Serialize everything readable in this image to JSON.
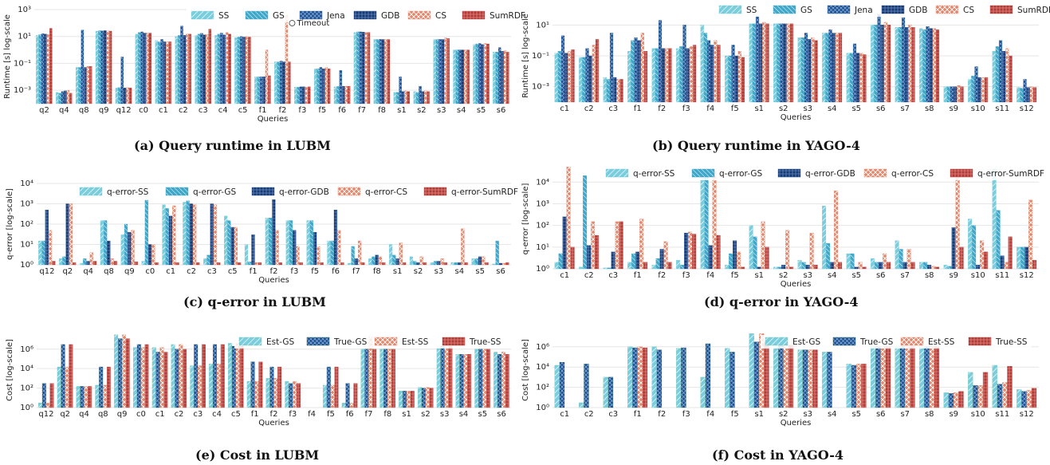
{
  "chart_data": [
    {
      "id": "a",
      "type": "bar",
      "log": true,
      "ylim_exp": [
        -4,
        3
      ],
      "ylabel": "Runtime [s] log-scale",
      "xlabel": "Queries",
      "caption": "(a) Query runtime in LUBM",
      "annotation": "Timeout",
      "categories": [
        "q2",
        "q4",
        "q8",
        "q9",
        "q12",
        "c0",
        "c1",
        "c2",
        "c3",
        "c4",
        "c5",
        "f1",
        "f2",
        "f3",
        "f5",
        "f6",
        "f7",
        "f8",
        "s1",
        "s2",
        "s3",
        "s4",
        "s5",
        "s6"
      ],
      "series": [
        {
          "name": "SS",
          "color": "#79cddc",
          "pattern": "p-ss",
          "values": [
            12,
            0.0007,
            0.05,
            25,
            0.0015,
            15,
            5,
            10,
            12,
            12,
            8,
            0.01,
            0.13,
            0.0017,
            0.04,
            0.0018,
            20,
            6,
            0.0007,
            0.0008,
            6,
            1,
            2.5,
            0.7
          ]
        },
        {
          "name": "GS",
          "color": "#3fa7c9",
          "pattern": "p-gs",
          "values": [
            14,
            0.0006,
            0.05,
            27,
            0.0016,
            20,
            4,
            12,
            15,
            15,
            9,
            0.01,
            0.13,
            0.0017,
            0.04,
            0.0019,
            22,
            6,
            0.0007,
            0.0007,
            6,
            1,
            2.8,
            0.7
          ]
        },
        {
          "name": "Jena",
          "color": "#1b4f8f",
          "pattern": "p-jena",
          "values": [
            16,
            0.0008,
            30,
            26,
            0.3,
            22,
            6,
            60,
            17,
            18,
            10,
            0.01,
            0.15,
            0.0018,
            0.05,
            0.03,
            22,
            6,
            0.01,
            0.002,
            6,
            1,
            3,
            1.5
          ]
        },
        {
          "name": "GDB",
          "color": "#173a74",
          "pattern": "p-gdb",
          "values": [
            15,
            0.0009,
            0.05,
            27,
            0.0015,
            18,
            4,
            12,
            13,
            13,
            9,
            0.01,
            0.13,
            0.0018,
            0.04,
            0.002,
            21,
            6,
            0.0008,
            0.0008,
            6,
            1,
            2.5,
            0.8
          ]
        },
        {
          "name": "CS",
          "color": "#e3876c",
          "pattern": "p-cs",
          "values": [
            14,
            0.001,
            0.06,
            26,
            0.0016,
            18,
            4,
            15,
            14,
            20,
            10,
            1,
            400,
            0.0017,
            0.05,
            0.002,
            20,
            6,
            0.0009,
            0.0009,
            8,
            1,
            3,
            0.9
          ]
        },
        {
          "name": "SumRDF",
          "color": "#b33a36",
          "pattern": "p-sumrdf",
          "values": [
            40,
            0.0006,
            0.06,
            25,
            0.0015,
            18,
            4,
            15,
            35,
            15,
            9,
            0.012,
            0.13,
            0.0018,
            0.04,
            0.002,
            20,
            6,
            0.0008,
            0.0008,
            7,
            1,
            2.8,
            0.7
          ]
        }
      ]
    },
    {
      "id": "b",
      "type": "bar",
      "log": true,
      "ylim_exp": [
        -4,
        2
      ],
      "ylabel": "Runtime [s] log-scale",
      "xlabel": "Queries",
      "caption": "(b) Query runtime in YAGO-4",
      "categories": [
        "c1",
        "c2",
        "c3",
        "f1",
        "f2",
        "f3",
        "f4",
        "f5",
        "s1",
        "s2",
        "s3",
        "s4",
        "s5",
        "s6",
        "s7",
        "s8",
        "s9",
        "s10",
        "s11",
        "s12"
      ],
      "series": [
        {
          "name": "SS",
          "color": "#79cddc",
          "pattern": "p-ss",
          "values": [
            0.15,
            0.08,
            0.004,
            0.2,
            0.3,
            0.3,
            10,
            0.1,
            12,
            12,
            1.5,
            3,
            0.15,
            10,
            7,
            6,
            0.001,
            0.003,
            0.2,
            0.0009
          ]
        },
        {
          "name": "GS",
          "color": "#3fa7c9",
          "pattern": "p-gs",
          "values": [
            0.2,
            0.08,
            0.003,
            1,
            0.3,
            0.4,
            3,
            0.1,
            12,
            12,
            1.5,
            3,
            0.15,
            10,
            7,
            5,
            0.001,
            0.005,
            0.4,
            0.0008
          ]
        },
        {
          "name": "Jena",
          "color": "#1b4f8f",
          "pattern": "p-jena",
          "values": [
            2,
            0.3,
            3,
            1.5,
            20,
            10,
            1,
            0.5,
            40,
            12,
            3,
            5,
            0.6,
            50,
            30,
            8,
            0.001,
            0.02,
            1,
            0.003
          ]
        },
        {
          "name": "GDB",
          "color": "#173a74",
          "pattern": "p-gdb",
          "values": [
            0.15,
            0.1,
            0.004,
            1,
            0.3,
            0.3,
            0.5,
            0.1,
            12,
            12,
            1.2,
            3,
            0.15,
            10,
            7,
            6,
            0.001,
            0.004,
            0.2,
            0.0009
          ]
        },
        {
          "name": "CS",
          "color": "#e3876c",
          "pattern": "p-cs",
          "values": [
            0.2,
            0.5,
            0.003,
            3,
            0.3,
            0.4,
            1,
            0.2,
            15,
            12,
            1.5,
            3,
            0.15,
            15,
            10,
            6,
            0.0012,
            0.004,
            0.3,
            0.001
          ]
        },
        {
          "name": "SumRDF",
          "color": "#b33a36",
          "pattern": "p-sumrdf",
          "values": [
            0.25,
            1.2,
            0.003,
            0.2,
            0.3,
            0.5,
            0.5,
            0.08,
            12,
            12,
            1,
            3,
            0.12,
            10,
            7,
            5,
            0.001,
            0.004,
            0.1,
            0.0009
          ]
        }
      ]
    },
    {
      "id": "c",
      "type": "bar",
      "log": true,
      "ylim_exp": [
        0,
        4
      ],
      "ylabel": "q-error [log-scale]",
      "xlabel": "Queries",
      "caption": "(c) q-error in LUBM",
      "categories": [
        "q12",
        "q2",
        "q4",
        "q8",
        "q9",
        "c0",
        "c1",
        "c2",
        "c3",
        "c5",
        "f1",
        "f2",
        "f3",
        "f5",
        "f6",
        "f7",
        "f8",
        "s1",
        "s2",
        "s3",
        "s4",
        "s5",
        "s6"
      ],
      "series": [
        {
          "name": "q-error-SS",
          "color": "#79cddc",
          "pattern": "p-ss",
          "values": [
            15,
            2,
            1.2,
            150,
            30,
            1.5,
            900,
            1200,
            2,
            250,
            10,
            200,
            150,
            150,
            15,
            1.2,
            2,
            10,
            2.5,
            1.3,
            1.3,
            2,
            1.1
          ]
        },
        {
          "name": "q-error-GS",
          "color": "#3fa7c9",
          "pattern": "p-gs",
          "values": [
            15,
            2.5,
            2,
            150,
            100,
            1500,
            600,
            1400,
            3,
            150,
            1.4,
            200,
            150,
            150,
            15,
            8,
            2.5,
            3,
            1.5,
            1.5,
            1.3,
            2,
            15
          ]
        },
        {
          "name": "q-error-GDB",
          "color": "#1b4f8f",
          "pattern": "p-gdb",
          "values": [
            500,
            1000,
            1.5,
            15,
            40,
            10,
            250,
            1000,
            1000,
            70,
            30,
            1600,
            50,
            40,
            500,
            2,
            3,
            2,
            1.3,
            1.5,
            1.3,
            2.5,
            1.2
          ]
        },
        {
          "name": "q-error-CS",
          "color": "#e3876c",
          "pattern": "p-cs",
          "values": [
            50,
            1000,
            4,
            2,
            50,
            10,
            800,
            900,
            900,
            70,
            1.3,
            50,
            8,
            8,
            50,
            15,
            2.5,
            12,
            2.5,
            2,
            60,
            2.5,
            1.2
          ]
        },
        {
          "name": "q-error-SumRDF",
          "color": "#b33a36",
          "pattern": "p-sumrdf",
          "values": [
            1.5,
            1.3,
            1.5,
            1.5,
            1.4,
            1.3,
            1.3,
            1.3,
            1.3,
            1.3,
            1.3,
            1.3,
            1.3,
            1.3,
            1.3,
            1.3,
            1.3,
            1.3,
            1.3,
            1.3,
            1.3,
            1.3,
            1.3
          ]
        }
      ]
    },
    {
      "id": "d",
      "type": "bar",
      "log": true,
      "ylim_exp": [
        0,
        4.6
      ],
      "ylabel": "q-error [log-scale]",
      "xlabel": "Queries",
      "caption": "(d) q-error in YAGO-4",
      "categories": [
        "c1",
        "c2",
        "c3",
        "f1",
        "f2",
        "f3",
        "f4",
        "f5",
        "s1",
        "s2",
        "s3",
        "s4",
        "s5",
        "s6",
        "s7",
        "s8",
        "s9",
        "s10",
        "s11",
        "s12"
      ],
      "series": [
        {
          "name": "q-error-SS",
          "color": "#79cddc",
          "pattern": "p-ss",
          "values": [
            2,
            1.2,
            1.1,
            2,
            1.5,
            2.5,
            40000,
            1.5,
            100,
            1.2,
            2.5,
            800,
            5,
            3,
            20,
            2,
            1.5,
            200,
            40000,
            10
          ]
        },
        {
          "name": "q-error-GS",
          "color": "#3fa7c9",
          "pattern": "p-gs",
          "values": [
            5,
            20000,
            1.1,
            5,
            3,
            1.5,
            40000,
            5,
            30,
            1.2,
            2,
            15,
            5,
            2,
            8,
            2,
            1.3,
            100,
            500,
            10
          ]
        },
        {
          "name": "q-error-GDB",
          "color": "#1b4f8f",
          "pattern": "p-gdb",
          "values": [
            250,
            12,
            6,
            6,
            8,
            45,
            12,
            20,
            1.2,
            1.5,
            1.5,
            2,
            1.2,
            2,
            2,
            1.5,
            80,
            1.5,
            4,
            10
          ]
        },
        {
          "name": "q-error-CS",
          "color": "#e3876c",
          "pattern": "p-cs",
          "values": [
            50000,
            150,
            150,
            200,
            18,
            50,
            40000,
            6,
            150,
            60,
            45,
            4000,
            2,
            5,
            8,
            1.3,
            40000,
            20,
            2,
            1500
          ]
        },
        {
          "name": "q-error-SumRDF",
          "color": "#b33a36",
          "pattern": "p-sumrdf",
          "values": [
            10,
            35,
            150,
            2,
            2,
            40,
            35,
            1.2,
            10,
            1.2,
            1.5,
            2,
            1.2,
            2,
            2,
            1.2,
            10,
            6,
            30,
            2.5
          ]
        }
      ]
    },
    {
      "id": "e",
      "type": "bar",
      "log": true,
      "ylim_exp": [
        0,
        7.7
      ],
      "ylabel": "Cost [log-scale]",
      "xlabel": "Queries",
      "caption": "(e) Cost in LUBM",
      "categories": [
        "q12",
        "q2",
        "q4",
        "q8",
        "q9",
        "c0",
        "c1",
        "c2",
        "c3",
        "c4",
        "c5",
        "f1",
        "f2",
        "f3",
        "f4",
        "f5",
        "f6",
        "f7",
        "f8",
        "s1",
        "s2",
        "s3",
        "s4",
        "s5",
        "s6"
      ],
      "series": [
        {
          "name": "Est-GS",
          "color": "#72c3aa",
          "pattern": "p-ss",
          "values": [
            3,
            15000,
            150,
            200,
            30000000,
            1500000,
            1500000,
            3000000,
            20000,
            30000,
            4000000,
            500,
            1000,
            500,
            1,
            200,
            3,
            1000000,
            1000000,
            50,
            120,
            1500000,
            300000,
            1000000,
            500000
          ]
        },
        {
          "name": "True-GS",
          "color": "#0f4a47",
          "pattern": "p-jena",
          "values": [
            300,
            3000000,
            150,
            15000,
            12000000,
            3000000,
            500000,
            1000000,
            3000000,
            3000000,
            2000000,
            50000,
            15000,
            300,
            1,
            15000,
            300,
            1000000,
            1000000,
            50,
            100,
            2000000,
            300000,
            1000000,
            300000
          ]
        },
        {
          "name": "Est-SS",
          "color": "#e3876c",
          "pattern": "p-cs",
          "values": [
            3,
            15000,
            150,
            200,
            30000000,
            1500000,
            1500000,
            3000000,
            20000,
            30000,
            4000000,
            500,
            1000,
            500,
            1,
            200,
            3,
            20000000,
            1000000,
            50,
            120,
            1500000,
            300000,
            1000000,
            500000
          ]
        },
        {
          "name": "True-SS",
          "color": "#b33a36",
          "pattern": "p-sumrdf",
          "values": [
            300,
            3000000,
            150,
            15000,
            12000000,
            3000000,
            500000,
            1000000,
            3000000,
            3000000,
            2000000,
            50000,
            15000,
            300,
            1,
            15000,
            300,
            1000000,
            1000000,
            50,
            100,
            2000000,
            300000,
            1000000,
            300000
          ]
        }
      ]
    },
    {
      "id": "f",
      "type": "bar",
      "log": true,
      "ylim_exp": [
        0,
        7.4
      ],
      "ylabel": "Cost [log-scale]",
      "xlabel": "Queries",
      "caption": "(f) Cost in YAGO-4",
      "categories": [
        "c1",
        "c2",
        "c3",
        "f1",
        "f2",
        "f3",
        "f4",
        "f5",
        "s1",
        "s2",
        "s3",
        "s4",
        "s5",
        "s6",
        "s7",
        "s8",
        "s9",
        "s10",
        "s11",
        "s12"
      ],
      "series": [
        {
          "name": "Est-GS",
          "color": "#72c3aa",
          "pattern": "p-ss",
          "values": [
            15000,
            3,
            1000,
            1000000,
            1000000,
            700000,
            1000,
            700000,
            20000000,
            1000000,
            500000,
            300000,
            20000,
            1000000,
            1000000,
            1000000,
            30,
            3000,
            15000,
            60
          ]
        },
        {
          "name": "True-GS",
          "color": "#0f4a47",
          "pattern": "p-jena",
          "values": [
            30000,
            20000,
            1000,
            800000,
            500000,
            800000,
            2000000,
            300000,
            3000000,
            1500000,
            500000,
            300000,
            15000,
            1000000,
            1000000,
            1000000,
            25,
            150,
            200,
            40
          ]
        },
        {
          "name": "Est-SS",
          "color": "#e3876c",
          "pattern": "p-cs",
          "values": [
            0,
            0,
            0,
            1000000,
            0,
            0,
            0,
            0,
            20000000,
            1000000,
            500000,
            0,
            20000,
            1000000,
            1000000,
            1000000,
            30,
            150,
            300,
            50
          ]
        },
        {
          "name": "True-SS",
          "color": "#b33a36",
          "pattern": "p-sumrdf",
          "values": [
            0,
            0,
            0,
            800000,
            0,
            0,
            0,
            0,
            3000000,
            1500000,
            500000,
            0,
            20000,
            1000000,
            1000000,
            1000000,
            40,
            3000,
            12000,
            80
          ]
        }
      ]
    }
  ]
}
